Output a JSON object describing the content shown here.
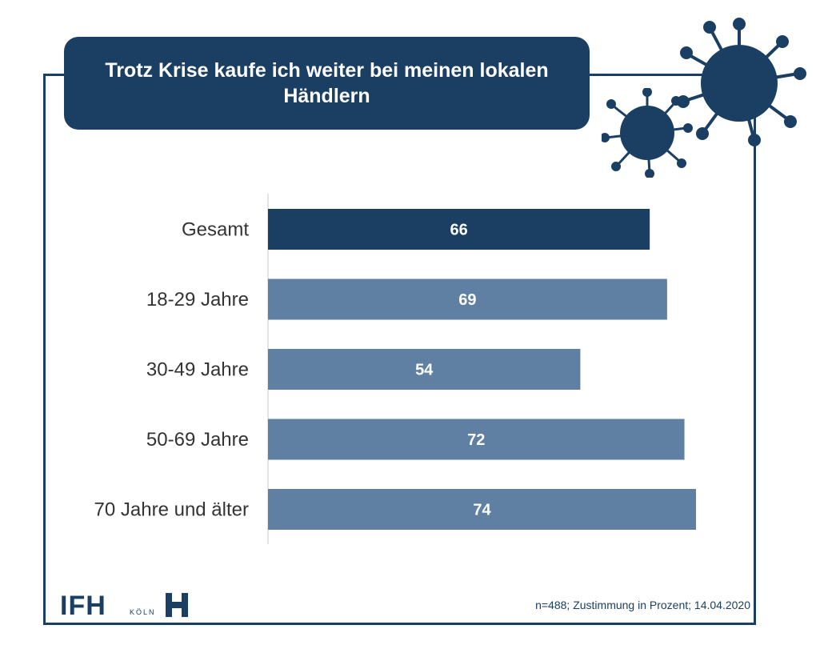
{
  "title": "Trotz Krise kaufe ich weiter bei meinen lokalen Händlern",
  "footnote": "n=488; Zustimmung in Prozent; 14.04.2020",
  "logo": {
    "main": "IFH",
    "city": "KÖLN"
  },
  "colors": {
    "primary": "#1b3f63",
    "bar_highlight": "#1b3f63",
    "bar_default": "#5f80a3",
    "label_text": "#ffffff"
  },
  "chart_data": {
    "type": "bar",
    "orientation": "horizontal",
    "categories": [
      "Gesamt",
      "18-29 Jahre",
      "30-49 Jahre",
      "50-69 Jahre",
      "70 Jahre und älter"
    ],
    "values": [
      66,
      69,
      54,
      72,
      74
    ],
    "highlight_index": 0,
    "title": "Trotz Krise kaufe ich weiter bei meinen lokalen Händlern",
    "xlim": [
      0,
      74
    ],
    "grid": false,
    "data_labels": true
  }
}
